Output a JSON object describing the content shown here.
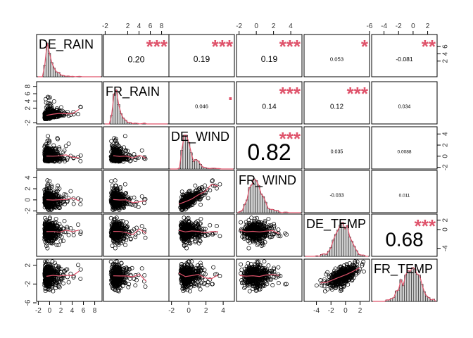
{
  "chart_data": {
    "type": "scatter-matrix",
    "variables": [
      "DE_RAIN",
      "FR_RAIN",
      "DE_WIND",
      "FR_WIND",
      "DE_TEMP",
      "FR_TEMP"
    ],
    "ranges": [
      [
        -2.3,
        9.3
      ],
      [
        -2.3,
        9.3
      ],
      [
        -2.3,
        5.3
      ],
      [
        -2.3,
        5.3
      ],
      [
        -5.7,
        3.3
      ],
      [
        -5.7,
        3.3
      ]
    ],
    "top_ticks": {
      "1": [
        -2,
        2,
        4,
        6,
        8
      ],
      "3": [
        -2,
        0,
        2,
        4
      ],
      "5": [
        -6,
        -4,
        -2,
        0,
        2
      ]
    },
    "bottom_ticks": {
      "0": [
        -2,
        0,
        2,
        4,
        6,
        8
      ],
      "2": [
        -2,
        0,
        2,
        4
      ],
      "4": [
        -4,
        -2,
        0,
        2
      ]
    },
    "left_ticks": {
      "1": [
        -2,
        2,
        4,
        6,
        8
      ],
      "3": [
        -2,
        0,
        2,
        4
      ],
      "5": [
        -6,
        -2,
        2
      ]
    },
    "right_ticks": {
      "0": [
        2,
        4,
        6
      ],
      "2": [
        -2,
        0,
        2,
        4
      ],
      "4": [
        -4,
        0,
        2
      ]
    },
    "correlations": [
      {
        "row": 0,
        "col": 1,
        "r": "0.20",
        "stars": "***"
      },
      {
        "row": 0,
        "col": 2,
        "r": "0.19",
        "stars": "***"
      },
      {
        "row": 0,
        "col": 3,
        "r": "0.19",
        "stars": "***"
      },
      {
        "row": 0,
        "col": 4,
        "r": "0.053",
        "stars": "*"
      },
      {
        "row": 0,
        "col": 5,
        "r": "-0.081",
        "stars": "**"
      },
      {
        "row": 1,
        "col": 2,
        "r": "0.046",
        "stars": "."
      },
      {
        "row": 1,
        "col": 3,
        "r": "0.14",
        "stars": "***"
      },
      {
        "row": 1,
        "col": 4,
        "r": "0.12",
        "stars": "***"
      },
      {
        "row": 1,
        "col": 5,
        "r": "0.034",
        "stars": ""
      },
      {
        "row": 2,
        "col": 3,
        "r": "0.82",
        "stars": "***"
      },
      {
        "row": 2,
        "col": 4,
        "r": "0.035",
        "stars": ""
      },
      {
        "row": 2,
        "col": 5,
        "r": "0.0088",
        "stars": ""
      },
      {
        "row": 3,
        "col": 4,
        "r": "-0.033",
        "stars": ""
      },
      {
        "row": 3,
        "col": 5,
        "r": "0.011",
        "stars": ""
      },
      {
        "row": 4,
        "col": 5,
        "r": "0.68",
        "stars": "***"
      }
    ],
    "colors": {
      "stars": "#df536b",
      "smooth": "#df536b",
      "points": "#000000",
      "bars": "#cccccc"
    }
  }
}
